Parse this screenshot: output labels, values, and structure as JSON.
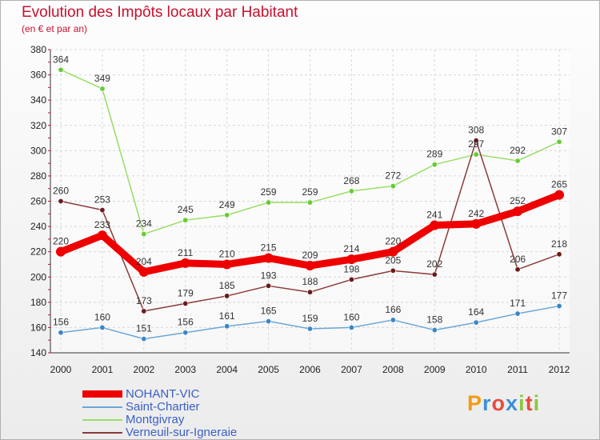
{
  "title": "Evolution des Impôts locaux par Habitant",
  "subtitle": "(en € et par an)",
  "brand": {
    "text": "Proxiti",
    "colors": [
      "#f39c12",
      "#3b8fd9",
      "#e74c3c",
      "#3b8fd9",
      "#8cc63f",
      "#e74c3c",
      "#8cc63f"
    ]
  },
  "chart_data": {
    "type": "line",
    "x": [
      "2000",
      "2001",
      "2002",
      "2003",
      "2004",
      "2005",
      "2006",
      "2007",
      "2008",
      "2009",
      "2010",
      "2011",
      "2012"
    ],
    "ylim": [
      140,
      380
    ],
    "yticks": [
      "140",
      "160",
      "180",
      "200",
      "220",
      "240",
      "260",
      "280",
      "300",
      "320",
      "340",
      "360",
      "380"
    ],
    "grid": true,
    "series": [
      {
        "name": "Montgivray",
        "color": "#99dd66",
        "marker": "#66cc33",
        "values": [
          364,
          349,
          234,
          245,
          249,
          259,
          259,
          268,
          272,
          289,
          297,
          292,
          307
        ],
        "labels": [
          "364",
          "349",
          "234",
          "245",
          "249",
          "259",
          "259",
          "268",
          "272",
          "289",
          "297",
          "292",
          "307"
        ]
      },
      {
        "name": "Verneuil-sur-Igneraie",
        "color": "#8b3a3a",
        "marker": "#6b1a1a",
        "values": [
          260,
          253,
          173,
          179,
          185,
          193,
          188,
          198,
          205,
          202,
          308,
          206,
          218
        ],
        "labels": [
          "260",
          "253",
          "173",
          "179",
          "185",
          "193",
          "188",
          "198",
          "205",
          "202",
          "308",
          "206",
          "218"
        ]
      },
      {
        "name": "Saint-Chartier",
        "color": "#6aa7d8",
        "marker": "#3a86c8",
        "values": [
          156,
          160,
          151,
          156,
          161,
          165,
          159,
          160,
          166,
          158,
          164,
          171,
          177
        ],
        "labels": [
          "156",
          "160",
          "151",
          "156",
          "161",
          "165",
          "159",
          "160",
          "166",
          "158",
          "164",
          "171",
          "177"
        ]
      },
      {
        "name": "NOHANT-VIC",
        "color": "#ee0000",
        "marker": "#ee0000",
        "values": [
          220,
          233,
          204,
          211,
          210,
          215,
          209,
          214,
          220,
          241,
          242,
          252,
          265
        ],
        "labels": [
          "220",
          "233",
          "204",
          "211",
          "210",
          "215",
          "209",
          "214",
          "220",
          "241",
          "242",
          "252",
          "265"
        ]
      }
    ]
  },
  "legend": [
    {
      "label": "NOHANT-VIC",
      "color": "#ee0000"
    },
    {
      "label": "Saint-Chartier",
      "color": "#6aa7d8"
    },
    {
      "label": "Montgivray",
      "color": "#99dd66"
    },
    {
      "label": "Verneuil-sur-Igneraie",
      "color": "#8b3a3a"
    }
  ]
}
